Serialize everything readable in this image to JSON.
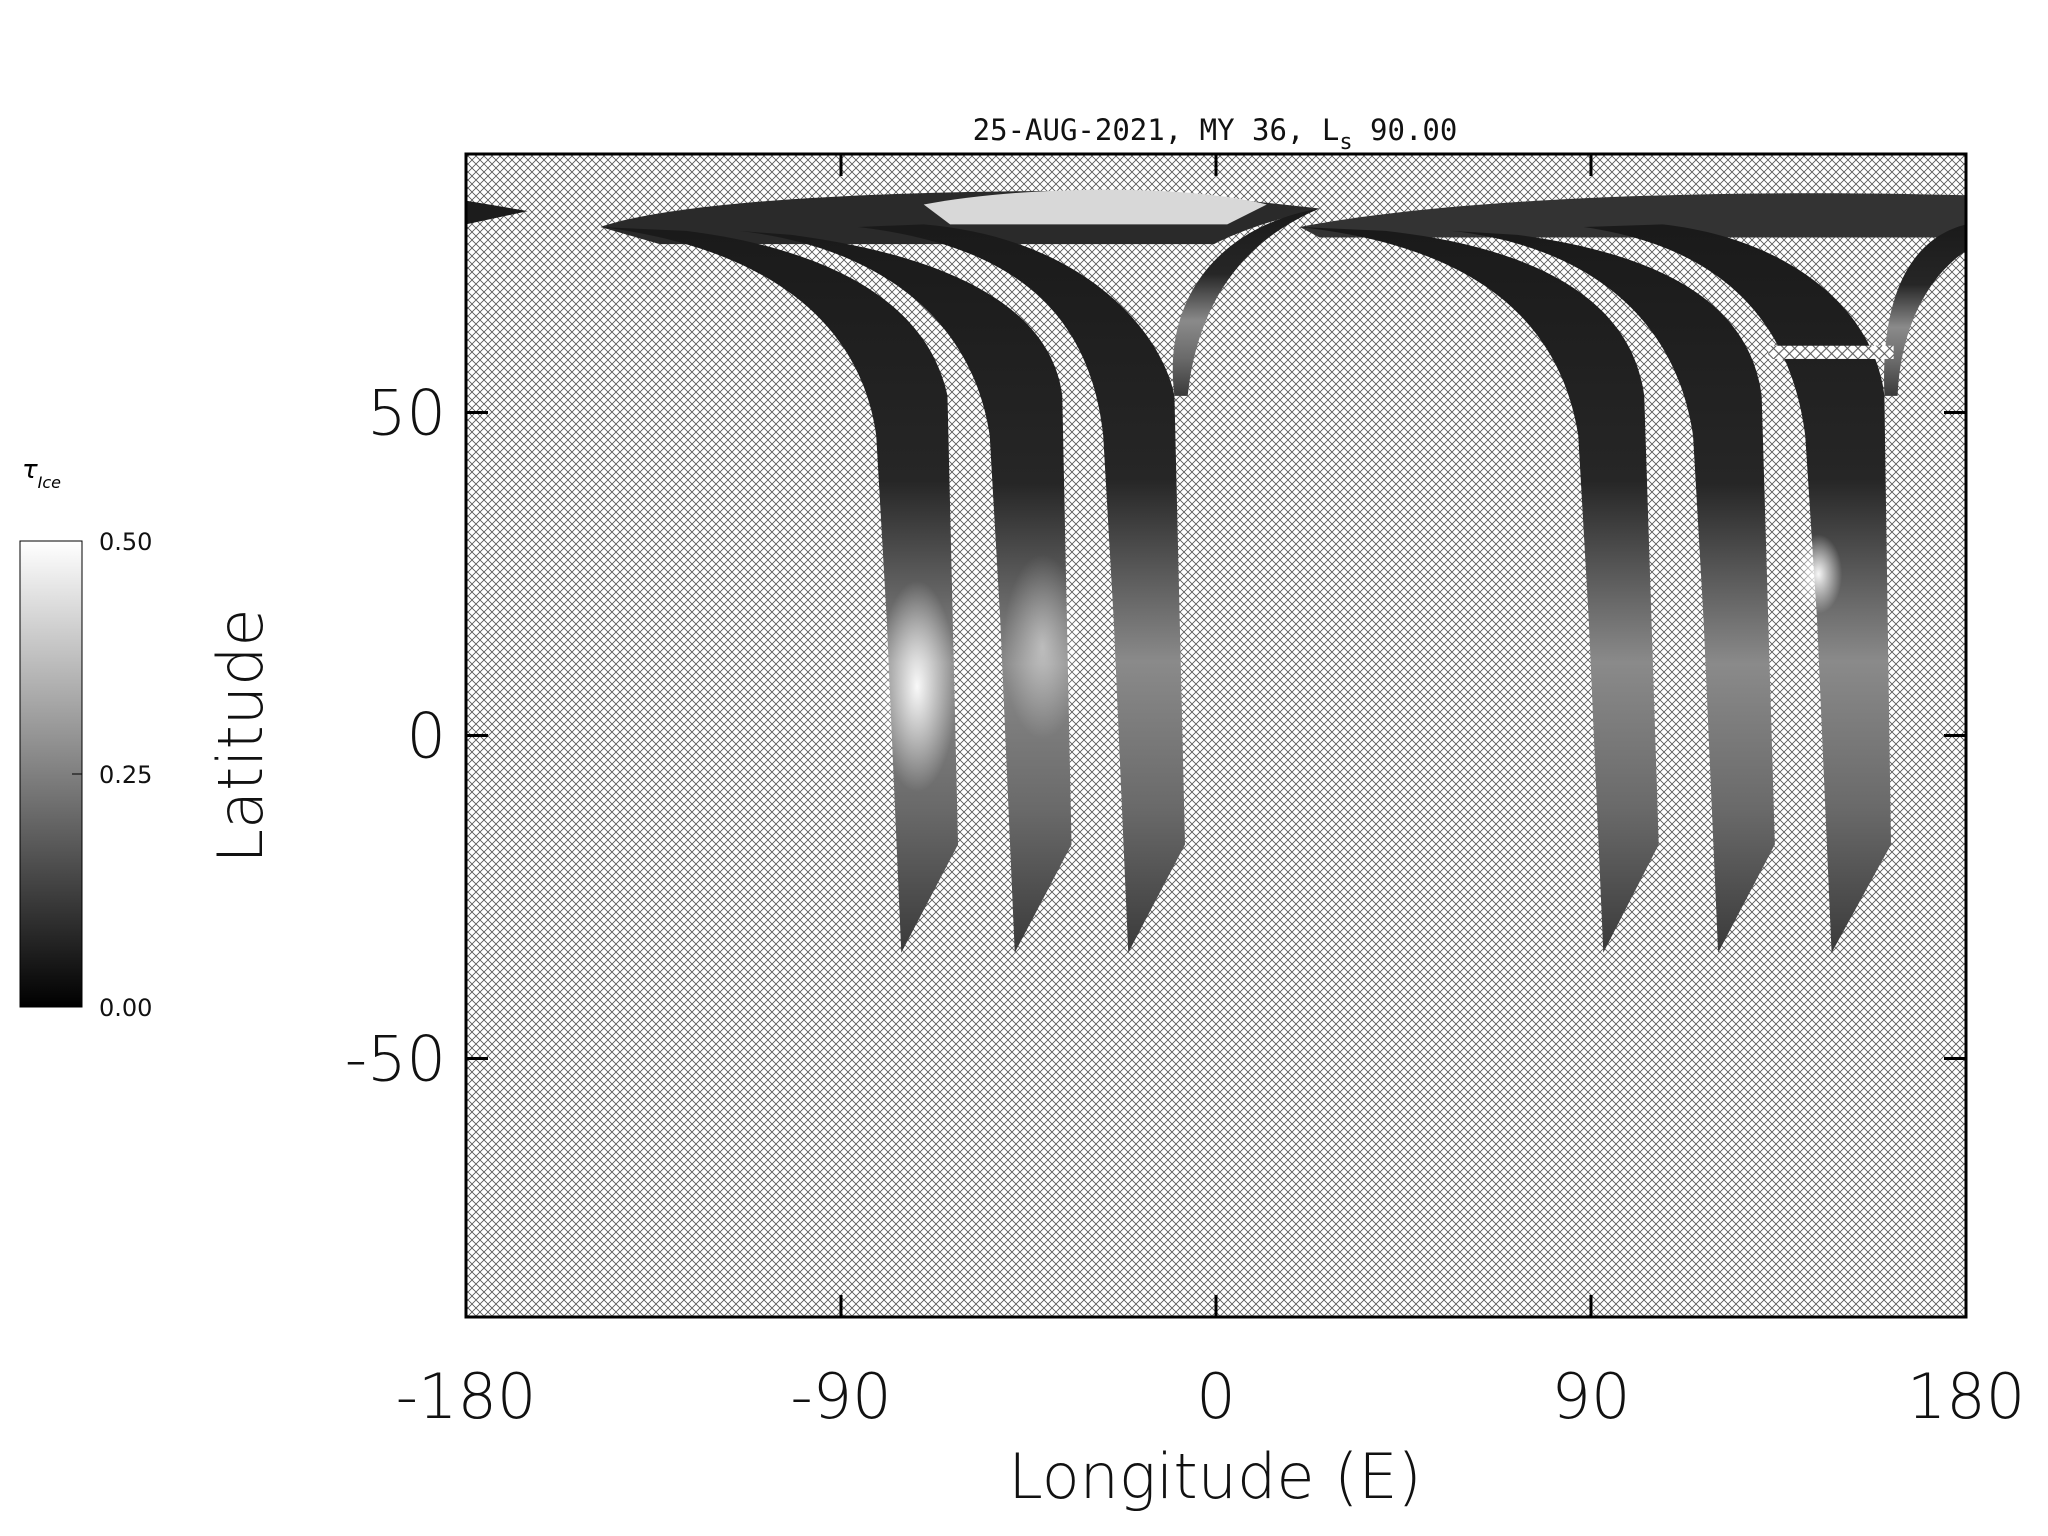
{
  "chart_data": {
    "type": "image",
    "title_parts": [
      "25-AUG-2021, MY 36,  L",
      "s",
      " 90.00"
    ],
    "xlabel": "Longitude (E)",
    "ylabel": "Latitude",
    "xlim": [
      -180,
      180
    ],
    "ylim": [
      -90,
      90
    ],
    "xticks": [
      -180,
      -90,
      0,
      90,
      180
    ],
    "yticks": [
      -50,
      0,
      50
    ],
    "colorbar": {
      "label": "τ",
      "label_subscript": "Ice",
      "clim": [
        0,
        0.5
      ],
      "ticks": [
        {
          "value": 0,
          "label": "0.00"
        },
        {
          "value": 0.25,
          "label": "0.25"
        },
        {
          "value": 0.5,
          "label": "0.50"
        }
      ]
    }
  }
}
